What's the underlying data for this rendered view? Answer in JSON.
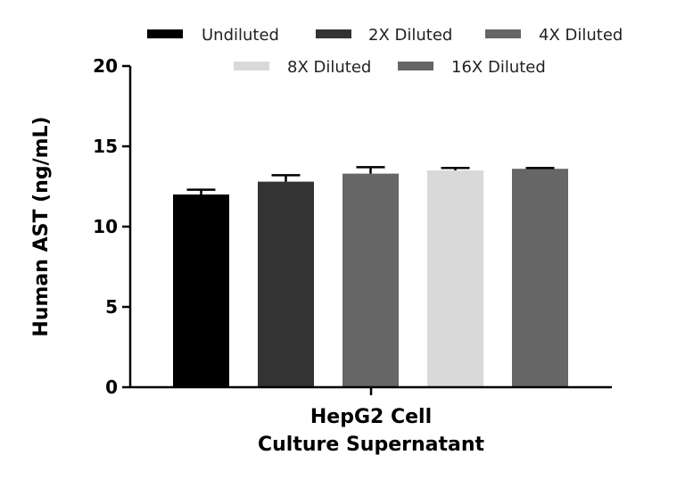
{
  "chart_data": {
    "type": "bar",
    "ylabel": "Human AST (ng/mL)",
    "xlabel_lines": [
      "HepG2 Cell",
      "Culture Supernatant"
    ],
    "ylim": [
      0,
      20
    ],
    "yticks": [
      0,
      5,
      10,
      15,
      20
    ],
    "legend_position": "top",
    "series": [
      {
        "name": "Undiluted",
        "value": 12.0,
        "error": 0.3,
        "color": "#000000"
      },
      {
        "name": "2X Diluted",
        "value": 12.8,
        "error": 0.4,
        "color": "#333333"
      },
      {
        "name": "4X Diluted",
        "value": 13.3,
        "error": 0.4,
        "color": "#666666"
      },
      {
        "name": "8X Diluted",
        "value": 13.5,
        "error": 0.15,
        "color": "#d9d9d9"
      },
      {
        "name": "16X Diluted",
        "value": 13.6,
        "error": 0.05,
        "color": "#666666"
      }
    ]
  }
}
